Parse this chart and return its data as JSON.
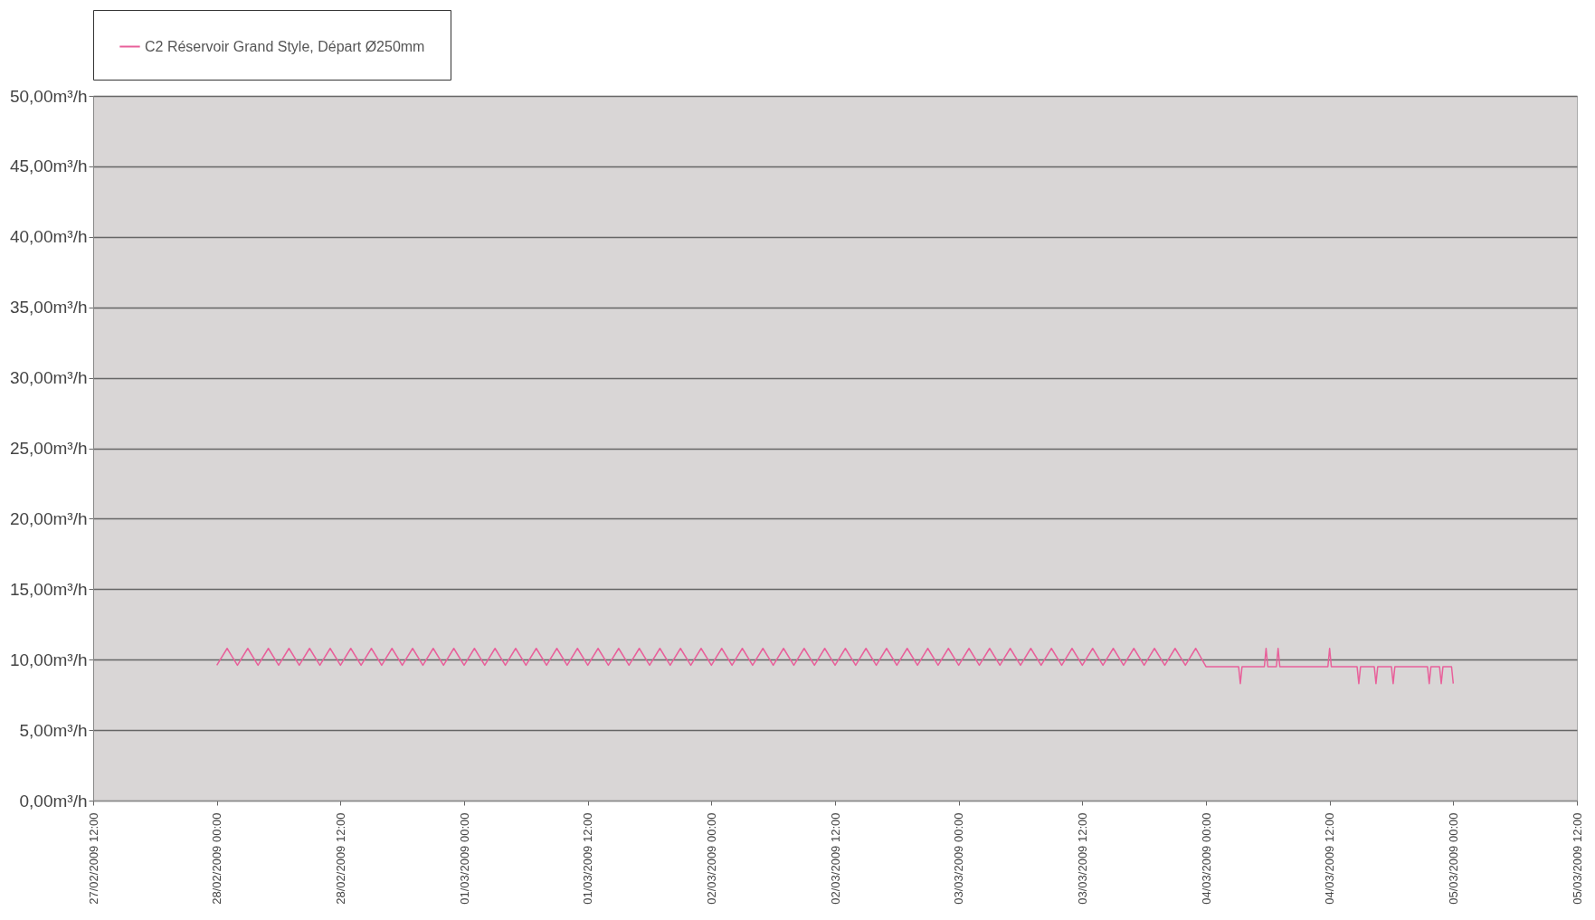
{
  "chart_data": {
    "type": "line",
    "legend": "top",
    "grid": "y",
    "marker": "none",
    "line_style": "solid",
    "xlim": [
      "2009-02-27T12:00",
      "2009-03-05T12:00"
    ],
    "xticks": [
      {
        "value": "2009-02-27T12:00",
        "label": "27/02/2009 12:00"
      },
      {
        "value": "2009-02-28T00:00",
        "label": "28/02/2009 00:00"
      },
      {
        "value": "2009-02-28T12:00",
        "label": "28/02/2009 12:00"
      },
      {
        "value": "2009-03-01T00:00",
        "label": "01/03/2009 00:00"
      },
      {
        "value": "2009-03-01T12:00",
        "label": "01/03/2009 12:00"
      },
      {
        "value": "2009-03-02T00:00",
        "label": "02/03/2009 00:00"
      },
      {
        "value": "2009-03-02T12:00",
        "label": "02/03/2009 12:00"
      },
      {
        "value": "2009-03-03T00:00",
        "label": "03/03/2009 00:00"
      },
      {
        "value": "2009-03-03T12:00",
        "label": "03/03/2009 12:00"
      },
      {
        "value": "2009-03-04T00:00",
        "label": "04/03/2009 00:00"
      },
      {
        "value": "2009-03-04T12:00",
        "label": "04/03/2009 12:00"
      },
      {
        "value": "2009-03-05T00:00",
        "label": "05/03/2009 00:00"
      },
      {
        "value": "2009-03-05T12:00",
        "label": "05/03/2009 12:00"
      }
    ],
    "ylim": [
      0,
      50
    ],
    "yticks": [
      {
        "value": 0,
        "label": "0,00m³/h"
      },
      {
        "value": 5,
        "label": "5,00m³/h"
      },
      {
        "value": 10,
        "label": "10,00m³/h"
      },
      {
        "value": 15,
        "label": "15,00m³/h"
      },
      {
        "value": 20,
        "label": "20,00m³/h"
      },
      {
        "value": 25,
        "label": "25,00m³/h"
      },
      {
        "value": 30,
        "label": "30,00m³/h"
      },
      {
        "value": 35,
        "label": "35,00m³/h"
      },
      {
        "value": 40,
        "label": "40,00m³/h"
      },
      {
        "value": 45,
        "label": "45,00m³/h"
      },
      {
        "value": 50,
        "label": "50,00m³/h"
      }
    ],
    "series": [
      {
        "name": "C2 Réservoir Grand Style, Départ Ø250mm",
        "color": "#e8609a",
        "x": [
          "2009-02-28T00:00",
          "2009-02-28T01:00",
          "2009-02-28T02:00",
          "2009-02-28T03:00",
          "2009-02-28T04:00",
          "2009-02-28T05:00",
          "2009-02-28T06:00",
          "2009-02-28T07:00",
          "2009-02-28T08:00",
          "2009-02-28T09:00",
          "2009-02-28T10:00",
          "2009-02-28T11:00",
          "2009-02-28T12:00",
          "2009-02-28T13:00",
          "2009-02-28T14:00",
          "2009-02-28T15:00",
          "2009-02-28T16:00",
          "2009-02-28T17:00",
          "2009-02-28T18:00",
          "2009-02-28T19:00",
          "2009-02-28T20:00",
          "2009-02-28T21:00",
          "2009-02-28T22:00",
          "2009-02-28T23:00",
          "2009-03-01T00:00",
          "2009-03-01T01:00",
          "2009-03-01T02:00",
          "2009-03-01T03:00",
          "2009-03-01T04:00",
          "2009-03-01T05:00",
          "2009-03-01T06:00",
          "2009-03-01T07:00",
          "2009-03-01T08:00",
          "2009-03-01T09:00",
          "2009-03-01T10:00",
          "2009-03-01T11:00",
          "2009-03-01T12:00",
          "2009-03-01T13:00",
          "2009-03-01T14:00",
          "2009-03-01T15:00",
          "2009-03-01T16:00",
          "2009-03-01T17:00",
          "2009-03-01T18:00",
          "2009-03-01T19:00",
          "2009-03-01T20:00",
          "2009-03-01T21:00",
          "2009-03-01T22:00",
          "2009-03-01T23:00",
          "2009-03-02T00:00",
          "2009-03-02T01:00",
          "2009-03-02T02:00",
          "2009-03-02T03:00",
          "2009-03-02T04:00",
          "2009-03-02T05:00",
          "2009-03-02T06:00",
          "2009-03-02T07:00",
          "2009-03-02T08:00",
          "2009-03-02T09:00",
          "2009-03-02T10:00",
          "2009-03-02T11:00",
          "2009-03-02T12:00",
          "2009-03-02T13:00",
          "2009-03-02T14:00",
          "2009-03-02T15:00",
          "2009-03-02T16:00",
          "2009-03-02T17:00",
          "2009-03-02T18:00",
          "2009-03-02T19:00",
          "2009-03-02T20:00",
          "2009-03-02T21:00",
          "2009-03-02T22:00",
          "2009-03-02T23:00",
          "2009-03-03T00:00",
          "2009-03-03T01:00",
          "2009-03-03T02:00",
          "2009-03-03T03:00",
          "2009-03-03T04:00",
          "2009-03-03T05:00",
          "2009-03-03T06:00",
          "2009-03-03T07:00",
          "2009-03-03T08:00",
          "2009-03-03T09:00",
          "2009-03-03T10:00",
          "2009-03-03T11:00",
          "2009-03-03T12:00",
          "2009-03-03T13:00",
          "2009-03-03T14:00",
          "2009-03-03T15:00",
          "2009-03-03T16:00",
          "2009-03-03T17:00",
          "2009-03-03T18:00",
          "2009-03-03T19:00",
          "2009-03-03T20:00",
          "2009-03-03T21:00",
          "2009-03-03T22:00",
          "2009-03-03T23:00",
          "2009-03-04T00:00",
          "2009-03-04T03:10",
          "2009-03-04T03:20",
          "2009-03-04T03:30",
          "2009-03-04T05:40",
          "2009-03-04T05:50",
          "2009-03-04T06:00",
          "2009-03-04T06:50",
          "2009-03-04T07:00",
          "2009-03-04T07:10",
          "2009-03-04T11:50",
          "2009-03-04T12:00",
          "2009-03-04T12:10",
          "2009-03-04T14:40",
          "2009-03-04T14:50",
          "2009-03-04T15:00",
          "2009-03-04T16:20",
          "2009-03-04T16:30",
          "2009-03-04T16:40",
          "2009-03-04T18:00",
          "2009-03-04T18:10",
          "2009-03-04T18:20",
          "2009-03-04T21:30",
          "2009-03-04T21:40",
          "2009-03-04T21:50",
          "2009-03-04T22:40",
          "2009-03-04T22:50",
          "2009-03-04T23:00",
          "2009-03-04T23:50",
          "2009-03-05T00:00"
        ],
        "values": [
          9.6,
          10.8,
          9.6,
          10.8,
          9.6,
          10.8,
          9.6,
          10.8,
          9.6,
          10.8,
          9.6,
          10.8,
          9.6,
          10.8,
          9.6,
          10.8,
          9.6,
          10.8,
          9.6,
          10.8,
          9.6,
          10.8,
          9.6,
          10.8,
          9.6,
          10.8,
          9.6,
          10.8,
          9.6,
          10.8,
          9.6,
          10.8,
          9.6,
          10.8,
          9.6,
          10.8,
          9.6,
          10.8,
          9.6,
          10.8,
          9.6,
          10.8,
          9.6,
          10.8,
          9.6,
          10.8,
          9.6,
          10.8,
          9.6,
          10.8,
          9.6,
          10.8,
          9.6,
          10.8,
          9.6,
          10.8,
          9.6,
          10.8,
          9.6,
          10.8,
          9.6,
          10.8,
          9.6,
          10.8,
          9.6,
          10.8,
          9.6,
          10.8,
          9.6,
          10.8,
          9.6,
          10.8,
          9.6,
          10.8,
          9.6,
          10.8,
          9.6,
          10.8,
          9.6,
          10.8,
          9.6,
          10.8,
          9.6,
          10.8,
          9.6,
          10.8,
          9.6,
          10.8,
          9.6,
          10.8,
          9.6,
          10.8,
          9.6,
          10.8,
          9.6,
          10.8,
          9.5,
          9.5,
          8.3,
          9.5,
          9.5,
          10.8,
          9.5,
          9.5,
          10.8,
          9.5,
          9.5,
          10.8,
          9.5,
          9.5,
          8.3,
          9.5,
          9.5,
          8.3,
          9.5,
          9.5,
          8.3,
          9.5,
          9.5,
          8.3,
          9.5,
          9.5,
          8.3,
          9.5,
          9.5,
          8.3
        ]
      }
    ]
  }
}
